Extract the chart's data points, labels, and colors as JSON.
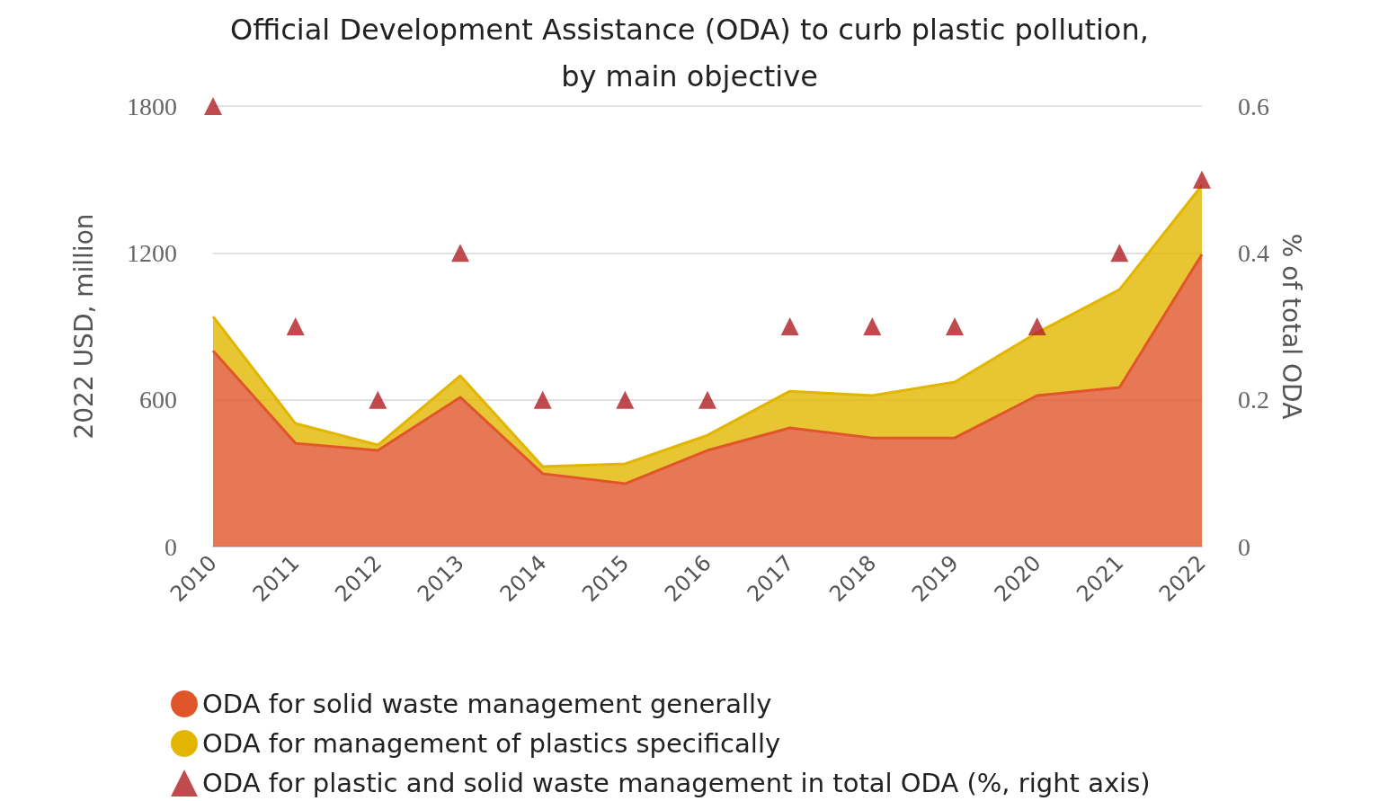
{
  "chart_data": {
    "type": "area",
    "title": "Official Development Assistance (ODA) to curb plastic pollution,\nby main objective",
    "ylabel": "2022 USD, million",
    "y2label": "% of total ODA",
    "categories": [
      "2010",
      "2011",
      "2012",
      "2013",
      "2014",
      "2015",
      "2016",
      "2017",
      "2018",
      "2019",
      "2020",
      "2021",
      "2022"
    ],
    "stacked": true,
    "ylim": [
      0,
      1800
    ],
    "yticks": [
      0,
      600,
      1200,
      1800
    ],
    "y2lim": [
      0,
      0.6
    ],
    "y2ticks": [
      0,
      0.2,
      0.4,
      0.6
    ],
    "grid": "y",
    "legend": "bottom left",
    "series": [
      {
        "name": "ODA for solid waste management generally",
        "color": "#e0562a",
        "marker": "none",
        "values": [
          800,
          422,
          393,
          610,
          298,
          257,
          393,
          485,
          444,
          444,
          617,
          650,
          1194
        ]
      },
      {
        "name": "ODA for management of plastics specifically",
        "color": "#e2b600",
        "marker": "none",
        "values": [
          140,
          81,
          22,
          88,
          29,
          81,
          62,
          150,
          173,
          228,
          257,
          400,
          282
        ]
      },
      {
        "name": "ODA for plastic and solid waste management in total ODA (%, right axis)",
        "type": "scatter",
        "axis": "y2",
        "color": "#b01e23",
        "marker": "triangle",
        "values": [
          0.6,
          0.3,
          0.2,
          0.4,
          0.2,
          0.2,
          0.2,
          0.3,
          0.3,
          0.3,
          0.3,
          0.4,
          0.5
        ]
      }
    ]
  }
}
